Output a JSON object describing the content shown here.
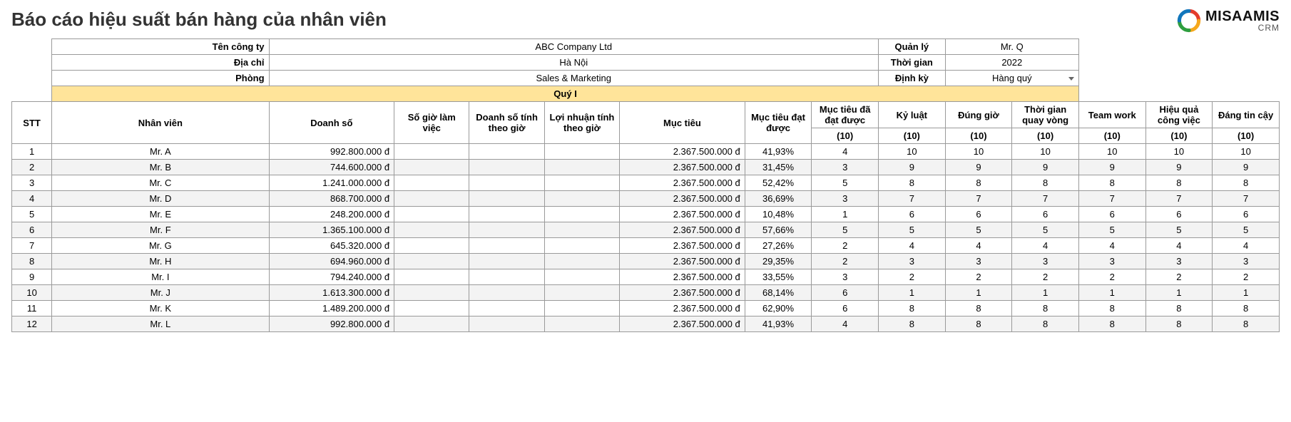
{
  "title": "Báo cáo hiệu suất bán hàng của nhân viên",
  "logo": {
    "main": "MISAAMIS",
    "sub": "CRM"
  },
  "meta": {
    "company_label": "Tên công ty",
    "company": "ABC Company Ltd",
    "address_label": "Địa chỉ",
    "address": "Hà Nội",
    "dept_label": "Phòng",
    "dept": "Sales & Marketing",
    "manager_label": "Quản lý",
    "manager": "Mr. Q",
    "period_label": "Thời gian",
    "period": "2022",
    "freq_label": "Định kỳ",
    "freq": "Hàng quý"
  },
  "quarter_band": "Quý I",
  "columns": {
    "stt": "STT",
    "emp": "Nhân viên",
    "rev": "Doanh số",
    "hours": "Số giờ làm việc",
    "rev_per_h": "Doanh số tính theo giờ",
    "profit_per_h": "Lợi nhuận tính theo giờ",
    "target": "Mục tiêu",
    "achieved": "Mục tiêu đạt được",
    "achieved2": "Mục tiêu đã đạt được",
    "disc": "Kỷ luật",
    "ontime": "Đúng giờ",
    "turnaround": "Thời gian quay vòng",
    "teamwork": "Team work",
    "efficiency": "Hiệu quả công việc",
    "reliable": "Đáng tin cậy",
    "max10": "(10)"
  },
  "rows": [
    {
      "stt": "1",
      "emp": "Mr. A",
      "rev": "992.800.000 đ",
      "target": "2.367.500.000 đ",
      "ach": "41,93%",
      "a2": "4",
      "d": "10",
      "o": "10",
      "t": "10",
      "tw": "10",
      "e": "10",
      "r": "10"
    },
    {
      "stt": "2",
      "emp": "Mr. B",
      "rev": "744.600.000 đ",
      "target": "2.367.500.000 đ",
      "ach": "31,45%",
      "a2": "3",
      "d": "9",
      "o": "9",
      "t": "9",
      "tw": "9",
      "e": "9",
      "r": "9"
    },
    {
      "stt": "3",
      "emp": "Mr. C",
      "rev": "1.241.000.000 đ",
      "target": "2.367.500.000 đ",
      "ach": "52,42%",
      "a2": "5",
      "d": "8",
      "o": "8",
      "t": "8",
      "tw": "8",
      "e": "8",
      "r": "8"
    },
    {
      "stt": "4",
      "emp": "Mr. D",
      "rev": "868.700.000 đ",
      "target": "2.367.500.000 đ",
      "ach": "36,69%",
      "a2": "3",
      "d": "7",
      "o": "7",
      "t": "7",
      "tw": "7",
      "e": "7",
      "r": "7"
    },
    {
      "stt": "5",
      "emp": "Mr. E",
      "rev": "248.200.000 đ",
      "target": "2.367.500.000 đ",
      "ach": "10,48%",
      "a2": "1",
      "d": "6",
      "o": "6",
      "t": "6",
      "tw": "6",
      "e": "6",
      "r": "6"
    },
    {
      "stt": "6",
      "emp": "Mr. F",
      "rev": "1.365.100.000 đ",
      "target": "2.367.500.000 đ",
      "ach": "57,66%",
      "a2": "5",
      "d": "5",
      "o": "5",
      "t": "5",
      "tw": "5",
      "e": "5",
      "r": "5"
    },
    {
      "stt": "7",
      "emp": "Mr. G",
      "rev": "645.320.000 đ",
      "target": "2.367.500.000 đ",
      "ach": "27,26%",
      "a2": "2",
      "d": "4",
      "o": "4",
      "t": "4",
      "tw": "4",
      "e": "4",
      "r": "4"
    },
    {
      "stt": "8",
      "emp": "Mr. H",
      "rev": "694.960.000 đ",
      "target": "2.367.500.000 đ",
      "ach": "29,35%",
      "a2": "2",
      "d": "3",
      "o": "3",
      "t": "3",
      "tw": "3",
      "e": "3",
      "r": "3"
    },
    {
      "stt": "9",
      "emp": "Mr. I",
      "rev": "794.240.000 đ",
      "target": "2.367.500.000 đ",
      "ach": "33,55%",
      "a2": "3",
      "d": "2",
      "o": "2",
      "t": "2",
      "tw": "2",
      "e": "2",
      "r": "2"
    },
    {
      "stt": "10",
      "emp": "Mr. J",
      "rev": "1.613.300.000 đ",
      "target": "2.367.500.000 đ",
      "ach": "68,14%",
      "a2": "6",
      "d": "1",
      "o": "1",
      "t": "1",
      "tw": "1",
      "e": "1",
      "r": "1"
    },
    {
      "stt": "11",
      "emp": "Mr. K",
      "rev": "1.489.200.000 đ",
      "target": "2.367.500.000 đ",
      "ach": "62,90%",
      "a2": "6",
      "d": "8",
      "o": "8",
      "t": "8",
      "tw": "8",
      "e": "8",
      "r": "8"
    },
    {
      "stt": "12",
      "emp": "Mr. L",
      "rev": "992.800.000 đ",
      "target": "2.367.500.000 đ",
      "ach": "41,93%",
      "a2": "4",
      "d": "8",
      "o": "8",
      "t": "8",
      "tw": "8",
      "e": "8",
      "r": "8"
    }
  ],
  "colors": {
    "band": "#ffe49a",
    "zebra": "#f3f3f3",
    "border": "#9a9a9a"
  }
}
